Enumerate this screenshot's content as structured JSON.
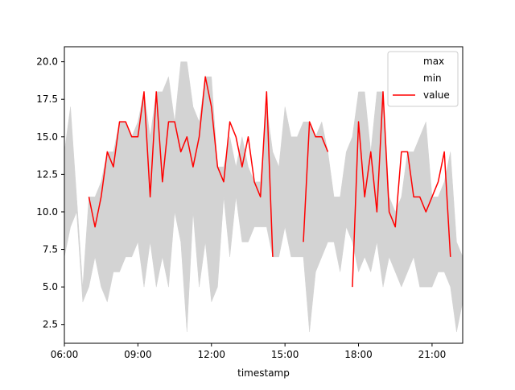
{
  "chart_data": {
    "type": "line",
    "title": "",
    "xlabel": "timestamp",
    "ylabel": "",
    "xlim": [
      "06:00",
      "22:15"
    ],
    "ylim": [
      1.25,
      21.0
    ],
    "x_ticks": [
      "06:00",
      "09:00",
      "12:00",
      "15:00",
      "18:00",
      "21:00"
    ],
    "y_ticks": [
      "2.5",
      "5.0",
      "7.5",
      "10.0",
      "12.5",
      "15.0",
      "17.5",
      "20.0"
    ],
    "grid": false,
    "legend": {
      "position": "top-right",
      "entries": [
        "max",
        "min",
        "value"
      ]
    },
    "colors": {
      "band": "#d3d3d3",
      "value": "#ff0000"
    },
    "x": [
      "06:00",
      "06:15",
      "06:30",
      "06:45",
      "07:00",
      "07:15",
      "07:30",
      "07:45",
      "08:00",
      "08:15",
      "08:30",
      "08:45",
      "09:00",
      "09:15",
      "09:30",
      "09:45",
      "10:00",
      "10:15",
      "10:30",
      "10:45",
      "11:00",
      "11:15",
      "11:30",
      "11:45",
      "12:00",
      "12:15",
      "12:30",
      "12:45",
      "13:00",
      "13:15",
      "13:30",
      "13:45",
      "14:00",
      "14:15",
      "14:30",
      "14:45",
      "15:00",
      "15:15",
      "15:30",
      "15:45",
      "16:00",
      "16:15",
      "16:30",
      "16:45",
      "17:00",
      "17:15",
      "17:30",
      "17:45",
      "18:00",
      "18:15",
      "18:30",
      "18:45",
      "19:00",
      "19:15",
      "19:30",
      "19:45",
      "20:00",
      "20:15",
      "20:30",
      "20:45",
      "21:00",
      "21:15",
      "21:30",
      "21:45",
      "22:00",
      "22:15"
    ],
    "series": [
      {
        "name": "max",
        "values": [
          14,
          17,
          11,
          5,
          11,
          11,
          12,
          14,
          14,
          16,
          16,
          15,
          16,
          18,
          15,
          18,
          18,
          19,
          16,
          20,
          20,
          17,
          16,
          19,
          19,
          13,
          13,
          15,
          13,
          15,
          13,
          12,
          12,
          17,
          14,
          13,
          17,
          15,
          15,
          16,
          16,
          15,
          16,
          14,
          11,
          11,
          14,
          15,
          18,
          18,
          14,
          18,
          18,
          11,
          10,
          11,
          14,
          14,
          15,
          16,
          11,
          11,
          12,
          14,
          8,
          7
        ],
        "values_end": 10
      },
      {
        "name": "min",
        "values": [
          7,
          9,
          10,
          4,
          5,
          7,
          5,
          4,
          6,
          6,
          7,
          7,
          8,
          5,
          8,
          5,
          7,
          5,
          10,
          8,
          2,
          10,
          5,
          8,
          4,
          5,
          11,
          7,
          11,
          8,
          8,
          9,
          9,
          9,
          7,
          7,
          9,
          7,
          7,
          7,
          2,
          6,
          7,
          8,
          8,
          6,
          9,
          8,
          6,
          7,
          6,
          8,
          5,
          7,
          6,
          5,
          6,
          7,
          5,
          5,
          5,
          6,
          6,
          5,
          2,
          4
        ],
        "values_end": 2
      },
      {
        "name": "value",
        "values": [
          null,
          null,
          null,
          null,
          11,
          9,
          11,
          14,
          13,
          16,
          16,
          15,
          15,
          18,
          11,
          18,
          12,
          16,
          16,
          14,
          15,
          13,
          15,
          19,
          17,
          13,
          12,
          16,
          15,
          13,
          15,
          12,
          11,
          18,
          7,
          null,
          null,
          null,
          null,
          8,
          16,
          15,
          15,
          14,
          null,
          null,
          null,
          5,
          16,
          11,
          14,
          10,
          18,
          10,
          9,
          14,
          14,
          11,
          11,
          10,
          11,
          12,
          14,
          7,
          null,
          null
        ]
      }
    ]
  }
}
